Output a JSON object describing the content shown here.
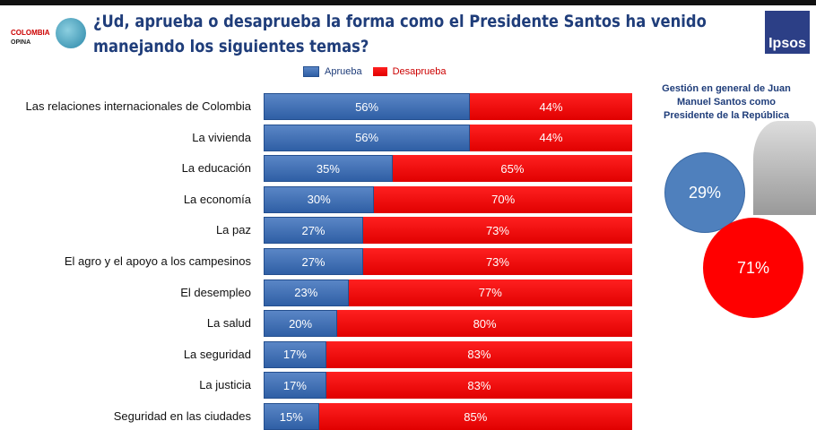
{
  "header": {
    "title": "¿Ud, aprueba o desaprueba la forma como el Presidente Santos ha venido manejando los siguientes temas?",
    "logo_left": "COLOMBIA OPINA",
    "logo_right": "Ipsos"
  },
  "chart_data": {
    "type": "bar",
    "orientation": "horizontal",
    "stacked": true,
    "categories": [
      "Las relaciones internacionales de Colombia",
      "La vivienda",
      "La educación",
      "La economía",
      "La paz",
      "El agro y el apoyo a los campesinos",
      "El desempleo",
      "La salud",
      "La seguridad",
      "La justicia",
      "Seguridad en las ciudades"
    ],
    "series": [
      {
        "name": "Aprueba",
        "color": "#4f80bd",
        "values": [
          56,
          56,
          35,
          30,
          27,
          27,
          23,
          20,
          17,
          17,
          15
        ]
      },
      {
        "name": "Desaprueba",
        "color": "#ff0000",
        "values": [
          44,
          44,
          65,
          70,
          73,
          73,
          77,
          80,
          83,
          83,
          85
        ]
      }
    ],
    "unit": "%",
    "legend": "top",
    "xlim": [
      0,
      100
    ]
  },
  "side": {
    "title": "Gestión en general de Juan Manuel Santos como Presidente de la República",
    "aprueba": "29%",
    "desaprueba": "71%"
  }
}
